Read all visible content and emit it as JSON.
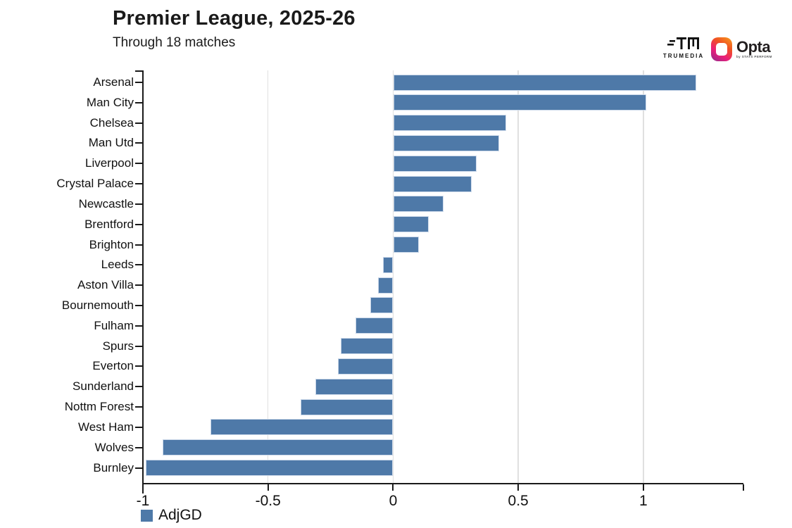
{
  "header": {
    "title": "Premier League, 2025-26",
    "subtitle": "Through 18 matches"
  },
  "branding": {
    "trumedia_label": "TRUMEDIA",
    "opta_name": "Opta",
    "opta_sublabel": "by STATS PERFORM"
  },
  "chart_data": {
    "type": "bar",
    "orientation": "horizontal",
    "title": "Premier League, 2025-26",
    "subtitle": "Through 18 matches",
    "categories": [
      "Arsenal",
      "Man City",
      "Chelsea",
      "Man Utd",
      "Liverpool",
      "Crystal Palace",
      "Newcastle",
      "Brentford",
      "Brighton",
      "Leeds",
      "Aston Villa",
      "Bournemouth",
      "Fulham",
      "Spurs",
      "Everton",
      "Sunderland",
      "Nottm Forest",
      "West Ham",
      "Wolves",
      "Burnley"
    ],
    "series": [
      {
        "name": "AdjGD",
        "color": "#4e79a8",
        "values": [
          1.21,
          1.01,
          0.45,
          0.42,
          0.33,
          0.31,
          0.2,
          0.14,
          0.1,
          -0.04,
          -0.06,
          -0.09,
          -0.15,
          -0.21,
          -0.22,
          -0.31,
          -0.37,
          -0.73,
          -0.92,
          -0.99
        ]
      }
    ],
    "xlabel": "",
    "ylabel": "",
    "xlim": [
      -1.0,
      1.4
    ],
    "xticks": [
      -1,
      -0.5,
      0,
      0.5,
      1
    ],
    "xtick_labels": [
      "-1",
      "-0.5",
      "0",
      "0.5",
      "1"
    ],
    "grid": true,
    "legend_position": "bottom-left",
    "colors": {
      "bar_fill": "#4e79a8",
      "bar_border": "#ccd9ea",
      "gridline": "#e0e0e0",
      "axis": "#1a1a1a"
    }
  }
}
